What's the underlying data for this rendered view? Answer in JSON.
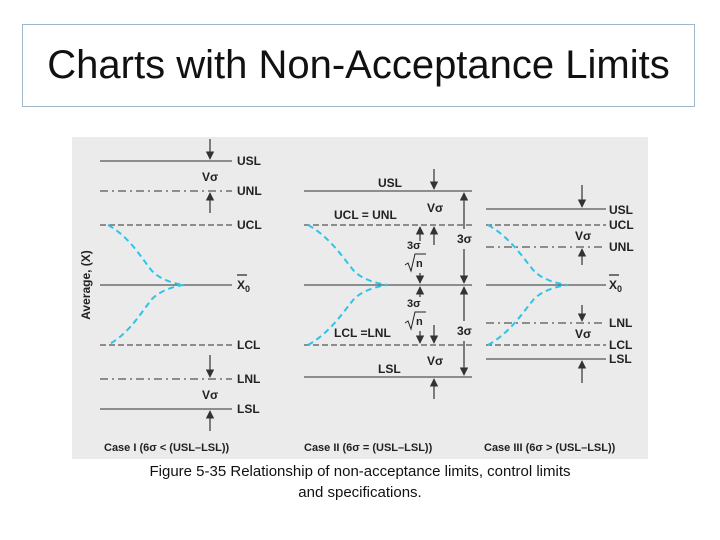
{
  "slide": {
    "title": "Charts with Non-Acceptance Limits",
    "caption_line1": "Figure 5-35 Relationship of non-acceptance limits, control limits",
    "caption_line2": "and specifications."
  },
  "diagram": {
    "y_axis_label": "Average, (X)",
    "x0_label": "X",
    "x0_subscript": "0",
    "case1": {
      "usl": "USL",
      "unl": "UNL",
      "ucl": "UCL",
      "lcl": "LCL",
      "lnl": "LNL",
      "lsl": "LSL",
      "v_sigma_top": "Vσ",
      "v_sigma_bottom": "Vσ",
      "caption": "Case I (6σ < (USL–LSL))"
    },
    "case2": {
      "usl": "USL",
      "ucl_unl": "UCL = UNL",
      "lcl_lnl": "LCL =LNL",
      "lsl": "LSL",
      "v_sigma_top": "Vσ",
      "v_sigma_bottom": "Vσ",
      "three_sigma_top": "3σ",
      "three_sigma_bottom": "3σ",
      "three_sigma_root_top": "3σ",
      "root_n_top": "n",
      "three_sigma_root_bottom": "3σ",
      "root_n_bottom": "n",
      "caption": "Case II (6σ = (USL–LSL))"
    },
    "case3": {
      "usl": "USL",
      "ucl": "UCL",
      "unl": "UNL",
      "lnl": "LNL",
      "lcl": "LCL",
      "lsl": "LSL",
      "v_sigma_top": "Vσ",
      "v_sigma_bottom": "Vσ",
      "caption": "Case III (6σ > (USL–LSL))"
    },
    "colors": {
      "curve": "#2ec4e8",
      "lines": "#555555",
      "figure_background": "#ebebeb"
    }
  }
}
